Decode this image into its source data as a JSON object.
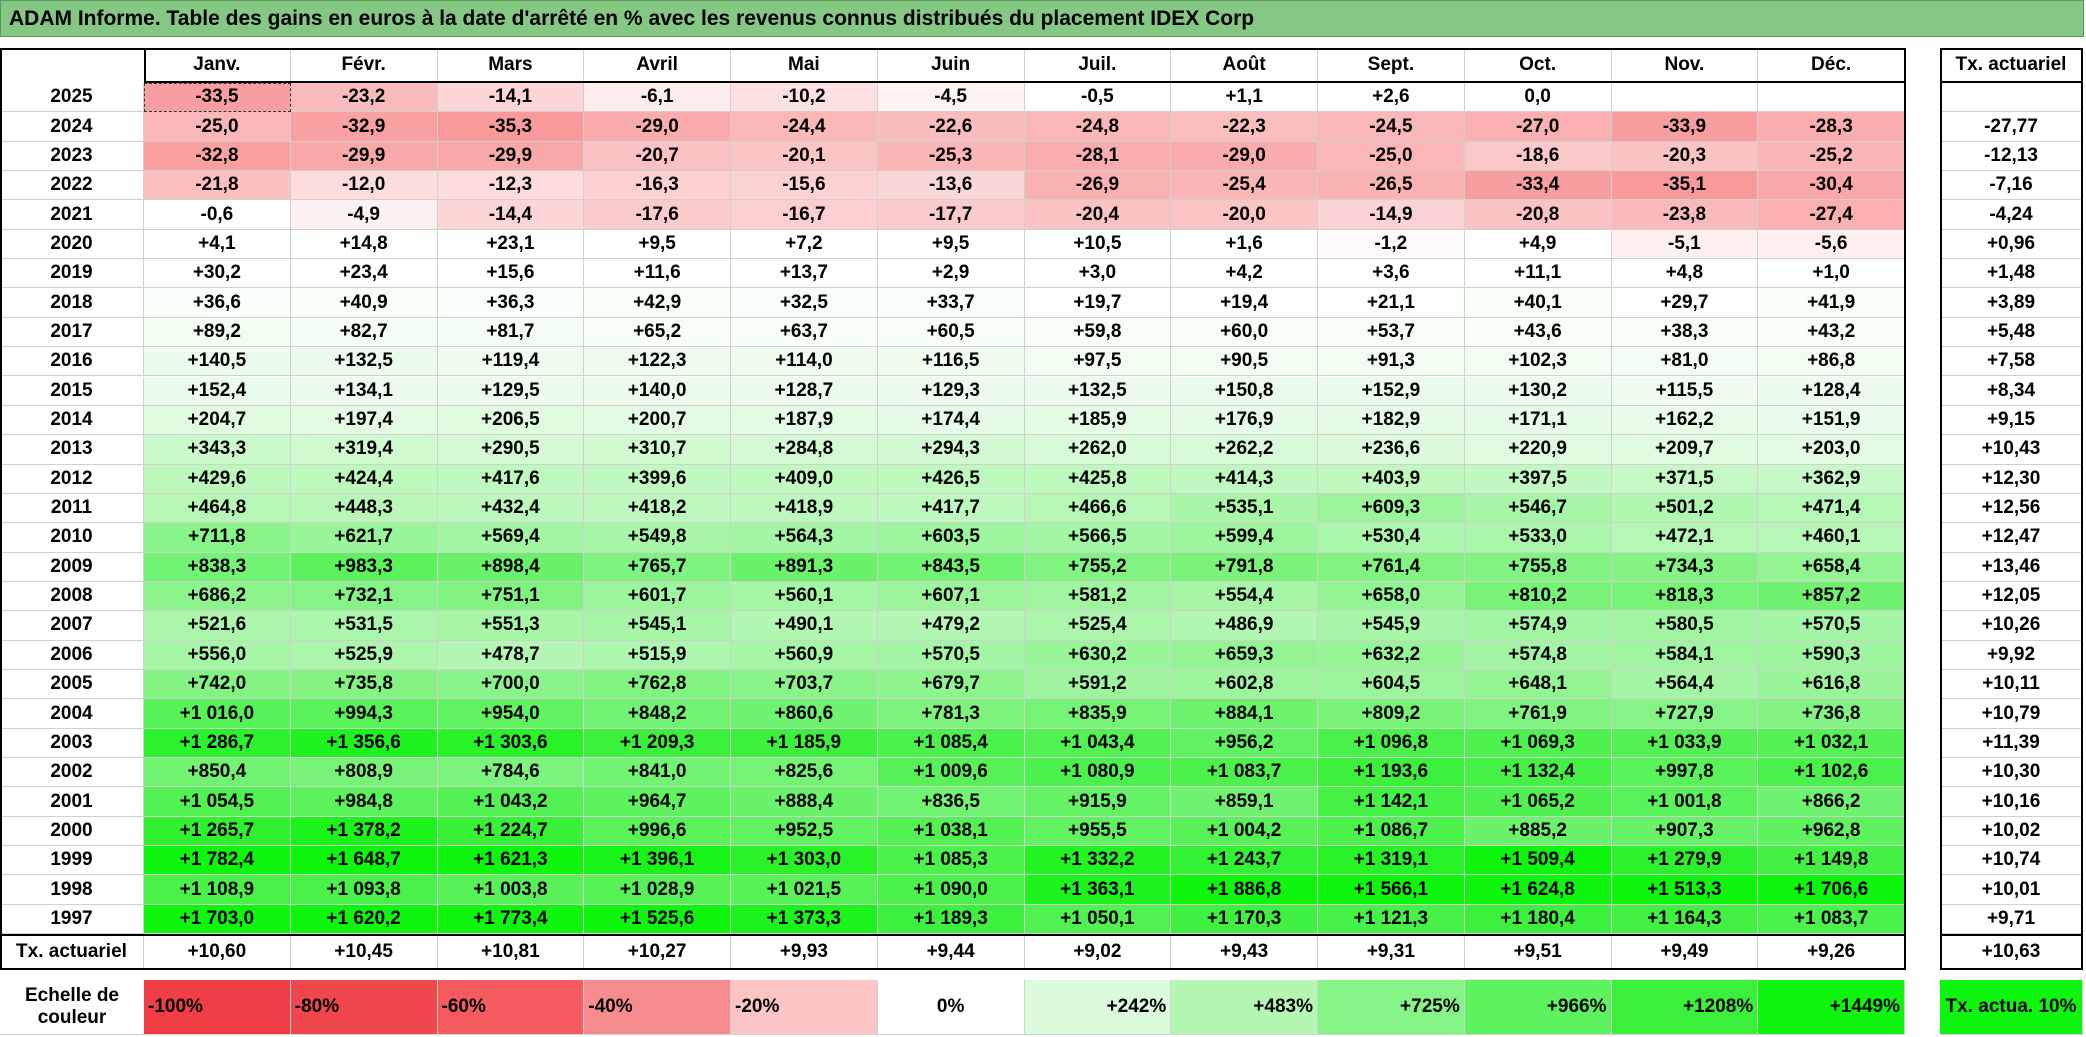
{
  "title": "ADAM Informe. Table des gains en euros à la date d'arrêté en % avec les revenus connus distribués du placement IDEX Corp",
  "months": [
    "Janv.",
    "Févr.",
    "Mars",
    "Avril",
    "Mai",
    "Juin",
    "Juil.",
    "Août",
    "Sept.",
    "Oct.",
    "Nov.",
    "Déc."
  ],
  "tx_header": "Tx. actuariel",
  "rows": [
    {
      "year": "2025",
      "values": [
        "-33,5",
        "-23,2",
        "-14,1",
        "-6,1",
        "-10,2",
        "-4,5",
        "-0,5",
        "+1,1",
        "+2,6",
        "0,0",
        null,
        null
      ],
      "tx": null
    },
    {
      "year": "2024",
      "values": [
        "-25,0",
        "-32,9",
        "-35,3",
        "-29,0",
        "-24,4",
        "-22,6",
        "-24,8",
        "-22,3",
        "-24,5",
        "-27,0",
        "-33,9",
        "-28,3"
      ],
      "tx": "-27,77"
    },
    {
      "year": "2023",
      "values": [
        "-32,8",
        "-29,9",
        "-29,9",
        "-20,7",
        "-20,1",
        "-25,3",
        "-28,1",
        "-29,0",
        "-25,0",
        "-18,6",
        "-20,3",
        "-25,2"
      ],
      "tx": "-12,13"
    },
    {
      "year": "2022",
      "values": [
        "-21,8",
        "-12,0",
        "-12,3",
        "-16,3",
        "-15,6",
        "-13,6",
        "-26,9",
        "-25,4",
        "-26,5",
        "-33,4",
        "-35,1",
        "-30,4"
      ],
      "tx": "-7,16"
    },
    {
      "year": "2021",
      "values": [
        "-0,6",
        "-4,9",
        "-14,4",
        "-17,6",
        "-16,7",
        "-17,7",
        "-20,4",
        "-20,0",
        "-14,9",
        "-20,8",
        "-23,8",
        "-27,4"
      ],
      "tx": "-4,24"
    },
    {
      "year": "2020",
      "values": [
        "+4,1",
        "+14,8",
        "+23,1",
        "+9,5",
        "+7,2",
        "+9,5",
        "+10,5",
        "+1,6",
        "-1,2",
        "+4,9",
        "-5,1",
        "-5,6"
      ],
      "tx": "+0,96"
    },
    {
      "year": "2019",
      "values": [
        "+30,2",
        "+23,4",
        "+15,6",
        "+11,6",
        "+13,7",
        "+2,9",
        "+3,0",
        "+4,2",
        "+3,6",
        "+11,1",
        "+4,8",
        "+1,0"
      ],
      "tx": "+1,48"
    },
    {
      "year": "2018",
      "values": [
        "+36,6",
        "+40,9",
        "+36,3",
        "+42,9",
        "+32,5",
        "+33,7",
        "+19,7",
        "+19,4",
        "+21,1",
        "+40,1",
        "+29,7",
        "+41,9"
      ],
      "tx": "+3,89"
    },
    {
      "year": "2017",
      "values": [
        "+89,2",
        "+82,7",
        "+81,7",
        "+65,2",
        "+63,7",
        "+60,5",
        "+59,8",
        "+60,0",
        "+53,7",
        "+43,6",
        "+38,3",
        "+43,2"
      ],
      "tx": "+5,48"
    },
    {
      "year": "2016",
      "values": [
        "+140,5",
        "+132,5",
        "+119,4",
        "+122,3",
        "+114,0",
        "+116,5",
        "+97,5",
        "+90,5",
        "+91,3",
        "+102,3",
        "+81,0",
        "+86,8"
      ],
      "tx": "+7,58"
    },
    {
      "year": "2015",
      "values": [
        "+152,4",
        "+134,1",
        "+129,5",
        "+140,0",
        "+128,7",
        "+129,3",
        "+132,5",
        "+150,8",
        "+152,9",
        "+130,2",
        "+115,5",
        "+128,4"
      ],
      "tx": "+8,34"
    },
    {
      "year": "2014",
      "values": [
        "+204,7",
        "+197,4",
        "+206,5",
        "+200,7",
        "+187,9",
        "+174,4",
        "+185,9",
        "+176,9",
        "+182,9",
        "+171,1",
        "+162,2",
        "+151,9"
      ],
      "tx": "+9,15"
    },
    {
      "year": "2013",
      "values": [
        "+343,3",
        "+319,4",
        "+290,5",
        "+310,7",
        "+284,8",
        "+294,3",
        "+262,0",
        "+262,2",
        "+236,6",
        "+220,9",
        "+209,7",
        "+203,0"
      ],
      "tx": "+10,43"
    },
    {
      "year": "2012",
      "values": [
        "+429,6",
        "+424,4",
        "+417,6",
        "+399,6",
        "+409,0",
        "+426,5",
        "+425,8",
        "+414,3",
        "+403,9",
        "+397,5",
        "+371,5",
        "+362,9"
      ],
      "tx": "+12,30"
    },
    {
      "year": "2011",
      "values": [
        "+464,8",
        "+448,3",
        "+432,4",
        "+418,2",
        "+418,9",
        "+417,7",
        "+466,6",
        "+535,1",
        "+609,3",
        "+546,7",
        "+501,2",
        "+471,4"
      ],
      "tx": "+12,56"
    },
    {
      "year": "2010",
      "values": [
        "+711,8",
        "+621,7",
        "+569,4",
        "+549,8",
        "+564,3",
        "+603,5",
        "+566,5",
        "+599,4",
        "+530,4",
        "+533,0",
        "+472,1",
        "+460,1"
      ],
      "tx": "+12,47"
    },
    {
      "year": "2009",
      "values": [
        "+838,3",
        "+983,3",
        "+898,4",
        "+765,7",
        "+891,3",
        "+843,5",
        "+755,2",
        "+791,8",
        "+761,4",
        "+755,8",
        "+734,3",
        "+658,4"
      ],
      "tx": "+13,46"
    },
    {
      "year": "2008",
      "values": [
        "+686,2",
        "+732,1",
        "+751,1",
        "+601,7",
        "+560,1",
        "+607,1",
        "+581,2",
        "+554,4",
        "+658,0",
        "+810,2",
        "+818,3",
        "+857,2"
      ],
      "tx": "+12,05"
    },
    {
      "year": "2007",
      "values": [
        "+521,6",
        "+531,5",
        "+551,3",
        "+545,1",
        "+490,1",
        "+479,2",
        "+525,4",
        "+486,9",
        "+545,9",
        "+574,9",
        "+580,5",
        "+570,5"
      ],
      "tx": "+10,26"
    },
    {
      "year": "2006",
      "values": [
        "+556,0",
        "+525,9",
        "+478,7",
        "+515,9",
        "+560,9",
        "+570,5",
        "+630,2",
        "+659,3",
        "+632,2",
        "+574,8",
        "+584,1",
        "+590,3"
      ],
      "tx": "+9,92"
    },
    {
      "year": "2005",
      "values": [
        "+742,0",
        "+735,8",
        "+700,0",
        "+762,8",
        "+703,7",
        "+679,7",
        "+591,2",
        "+602,8",
        "+604,5",
        "+648,1",
        "+564,4",
        "+616,8"
      ],
      "tx": "+10,11"
    },
    {
      "year": "2004",
      "values": [
        "+1 016,0",
        "+994,3",
        "+954,0",
        "+848,2",
        "+860,6",
        "+781,3",
        "+835,9",
        "+884,1",
        "+809,2",
        "+761,9",
        "+727,9",
        "+736,8"
      ],
      "tx": "+10,79"
    },
    {
      "year": "2003",
      "values": [
        "+1 286,7",
        "+1 356,6",
        "+1 303,6",
        "+1 209,3",
        "+1 185,9",
        "+1 085,4",
        "+1 043,4",
        "+956,2",
        "+1 096,8",
        "+1 069,3",
        "+1 033,9",
        "+1 032,1"
      ],
      "tx": "+11,39"
    },
    {
      "year": "2002",
      "values": [
        "+850,4",
        "+808,9",
        "+784,6",
        "+841,0",
        "+825,6",
        "+1 009,6",
        "+1 080,9",
        "+1 083,7",
        "+1 193,6",
        "+1 132,4",
        "+997,8",
        "+1 102,6"
      ],
      "tx": "+10,30"
    },
    {
      "year": "2001",
      "values": [
        "+1 054,5",
        "+984,8",
        "+1 043,2",
        "+964,7",
        "+888,4",
        "+836,5",
        "+915,9",
        "+859,1",
        "+1 142,1",
        "+1 065,2",
        "+1 001,8",
        "+866,2"
      ],
      "tx": "+10,16"
    },
    {
      "year": "2000",
      "values": [
        "+1 265,7",
        "+1 378,2",
        "+1 224,7",
        "+996,6",
        "+952,5",
        "+1 038,1",
        "+955,5",
        "+1 004,2",
        "+1 086,7",
        "+885,2",
        "+907,3",
        "+962,8"
      ],
      "tx": "+10,02"
    },
    {
      "year": "1999",
      "values": [
        "+1 782,4",
        "+1 648,7",
        "+1 621,3",
        "+1 396,1",
        "+1 303,0",
        "+1 085,3",
        "+1 332,2",
        "+1 243,7",
        "+1 319,1",
        "+1 509,4",
        "+1 279,9",
        "+1 149,8"
      ],
      "tx": "+10,74"
    },
    {
      "year": "1998",
      "values": [
        "+1 108,9",
        "+1 093,8",
        "+1 003,8",
        "+1 028,9",
        "+1 021,5",
        "+1 090,0",
        "+1 363,1",
        "+1 886,8",
        "+1 566,1",
        "+1 624,8",
        "+1 513,3",
        "+1 706,6"
      ],
      "tx": "+10,01"
    },
    {
      "year": "1997",
      "values": [
        "+1 703,0",
        "+1 620,2",
        "+1 773,4",
        "+1 525,6",
        "+1 373,3",
        "+1 189,3",
        "+1 050,1",
        "+1 170,3",
        "+1 121,3",
        "+1 180,4",
        "+1 164,3",
        "+1 083,7"
      ],
      "tx": "+9,71"
    }
  ],
  "footer": {
    "label": "Tx. actuariel",
    "values": [
      "+10,60",
      "+10,45",
      "+10,81",
      "+10,27",
      "+9,93",
      "+9,44",
      "+9,02",
      "+9,43",
      "+9,31",
      "+9,51",
      "+9,49",
      "+9,26"
    ],
    "tx": "+10,63"
  },
  "scale": {
    "label": "Echelle de couleur",
    "steps": [
      "-100%",
      "-80%",
      "-60%",
      "-40%",
      "-20%",
      "0%",
      "+242%",
      "+483%",
      "+725%",
      "+966%",
      "+1208%",
      "+1449%"
    ],
    "tx_label": "Tx. actua. 10%"
  }
}
